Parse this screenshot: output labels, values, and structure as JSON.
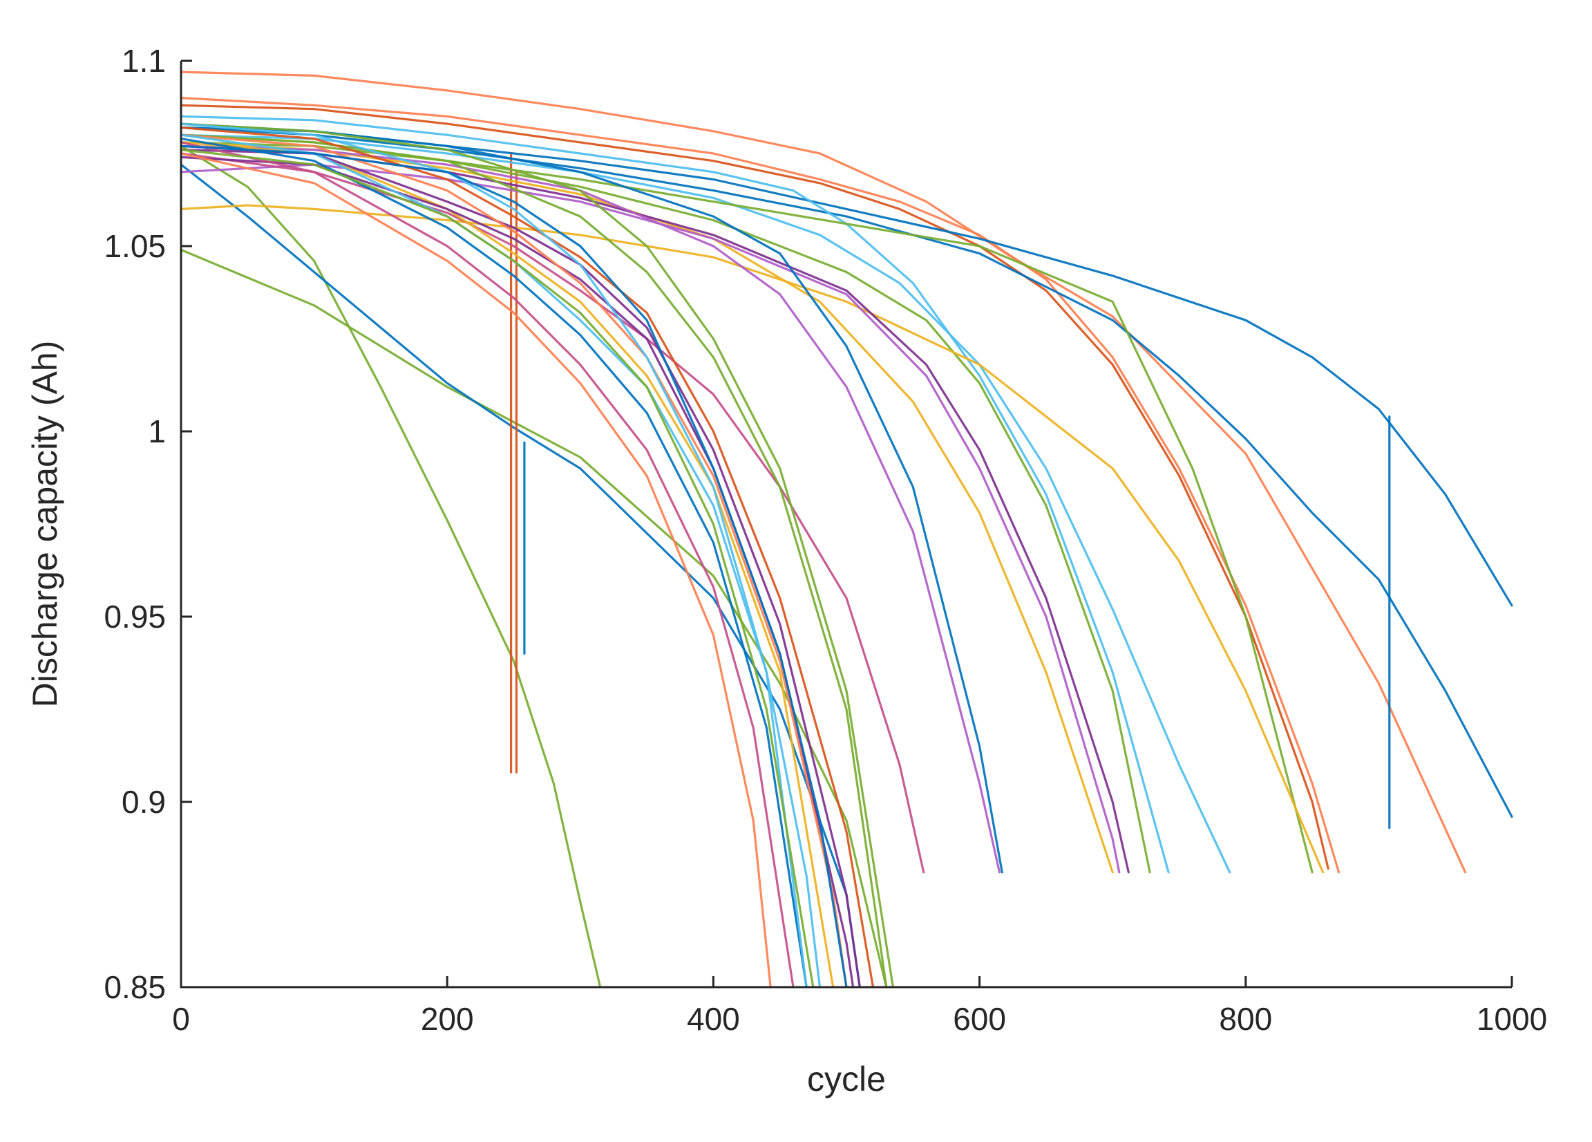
{
  "chart_data": {
    "type": "line",
    "title": "",
    "xlabel": "cycle",
    "ylabel": "Discharge capacity (Ah)",
    "xlim": [
      0,
      1000
    ],
    "ylim": [
      0.85,
      1.1
    ],
    "xticks": [
      0,
      200,
      400,
      600,
      800,
      1000
    ],
    "yticks": [
      0.85,
      0.9,
      0.95,
      1,
      1.05,
      1.1
    ],
    "xtick_labels": [
      "0",
      "200",
      "400",
      "600",
      "800",
      "1000"
    ],
    "ytick_labels": [
      "0.85",
      "0.9",
      "0.95",
      "1",
      "1.05",
      "1.1"
    ],
    "grid": false,
    "legend": "none",
    "series": [
      {
        "color": "#77ac30",
        "x": [
          0,
          50,
          100,
          150,
          200,
          250,
          280,
          300,
          315
        ],
        "y": [
          1.077,
          1.066,
          1.046,
          1.012,
          0.976,
          0.938,
          0.905,
          0.873,
          0.85
        ]
      },
      {
        "color": "#77ac30",
        "x": [
          0,
          100,
          200,
          300,
          400,
          450,
          500,
          530
        ],
        "y": [
          1.049,
          1.034,
          1.012,
          0.993,
          0.961,
          0.932,
          0.895,
          0.85
        ]
      },
      {
        "color": "#0072bd",
        "x": [
          0,
          50,
          100,
          150,
          200,
          250,
          300,
          400,
          450,
          500,
          510
        ],
        "y": [
          1.072,
          1.058,
          1.043,
          1.028,
          1.013,
          1.001,
          0.99,
          0.955,
          0.925,
          0.875,
          0.85
        ]
      },
      {
        "color": "#0072bd",
        "x": [
          258,
          258
        ],
        "y": [
          0.997,
          0.94
        ]
      },
      {
        "color": "#d95319",
        "x": [
          248,
          248
        ],
        "y": [
          1.075,
          0.908
        ]
      },
      {
        "color": "#d95319",
        "x": [
          252,
          252
        ],
        "y": [
          1.07,
          0.908
        ]
      },
      {
        "color": "#ff7f50",
        "x": [
          0,
          100,
          200,
          300,
          400,
          480,
          560,
          620,
          700,
          800,
          900,
          965
        ],
        "y": [
          1.097,
          1.096,
          1.092,
          1.087,
          1.081,
          1.075,
          1.062,
          1.048,
          1.031,
          0.994,
          0.932,
          0.881
        ]
      },
      {
        "color": "#ff7f50",
        "x": [
          0,
          100,
          200,
          300,
          400,
          480,
          540,
          600,
          650,
          700,
          750,
          800,
          850,
          870
        ],
        "y": [
          1.09,
          1.088,
          1.085,
          1.08,
          1.075,
          1.068,
          1.062,
          1.053,
          1.041,
          1.02,
          0.99,
          0.953,
          0.905,
          0.881
        ]
      },
      {
        "color": "#d95319",
        "x": [
          0,
          100,
          200,
          300,
          400,
          480,
          540,
          600,
          650,
          700,
          750,
          800,
          850,
          862
        ],
        "y": [
          1.088,
          1.087,
          1.083,
          1.078,
          1.073,
          1.067,
          1.06,
          1.05,
          1.038,
          1.018,
          0.988,
          0.95,
          0.9,
          0.882
        ]
      },
      {
        "color": "#0072bd",
        "x": [
          0,
          100,
          200,
          300,
          400,
          500,
          600,
          700,
          800,
          850,
          900,
          950,
          1000
        ],
        "y": [
          1.083,
          1.081,
          1.077,
          1.073,
          1.068,
          1.06,
          1.052,
          1.042,
          1.03,
          1.02,
          1.006,
          0.983,
          0.953
        ]
      },
      {
        "color": "#0072bd",
        "x": [
          0,
          100,
          200,
          300,
          400,
          500,
          600,
          700,
          750,
          800,
          850,
          900,
          950,
          1000
        ],
        "y": [
          1.082,
          1.08,
          1.076,
          1.071,
          1.065,
          1.058,
          1.048,
          1.03,
          1.015,
          0.998,
          0.978,
          0.96,
          0.93,
          0.896
        ]
      },
      {
        "color": "#0072bd",
        "x": [
          908,
          908
        ],
        "y": [
          1.004,
          0.893
        ]
      },
      {
        "color": "#4dbeee",
        "x": [
          0,
          100,
          200,
          300,
          400,
          480,
          540,
          600,
          650,
          700,
          750,
          788
        ],
        "y": [
          1.08,
          1.079,
          1.075,
          1.07,
          1.063,
          1.053,
          1.04,
          1.018,
          0.99,
          0.952,
          0.91,
          0.881
        ]
      },
      {
        "color": "#4dbeee",
        "x": [
          0,
          100,
          200,
          300,
          400,
          460,
          500,
          550,
          600,
          650,
          700,
          742
        ],
        "y": [
          1.085,
          1.084,
          1.08,
          1.075,
          1.07,
          1.065,
          1.056,
          1.04,
          1.015,
          0.983,
          0.935,
          0.881
        ]
      },
      {
        "color": "#77ac30",
        "x": [
          0,
          100,
          200,
          300,
          400,
          500,
          560,
          600,
          650,
          700,
          728
        ],
        "y": [
          1.08,
          1.078,
          1.073,
          1.066,
          1.057,
          1.043,
          1.03,
          1.013,
          0.98,
          0.93,
          0.881
        ]
      },
      {
        "color": "#77ac30",
        "x": [
          0,
          100,
          200,
          300,
          400,
          500,
          600,
          700,
          760,
          800,
          850
        ],
        "y": [
          1.078,
          1.077,
          1.073,
          1.068,
          1.062,
          1.056,
          1.05,
          1.035,
          0.99,
          0.95,
          0.881
        ]
      },
      {
        "color": "#edb120",
        "x": [
          0,
          50,
          100,
          200,
          300,
          400,
          500,
          600,
          700,
          750,
          800,
          858
        ],
        "y": [
          1.06,
          1.061,
          1.06,
          1.057,
          1.053,
          1.047,
          1.035,
          1.018,
          0.99,
          0.965,
          0.93,
          0.881
        ]
      },
      {
        "color": "#edb120",
        "x": [
          0,
          100,
          200,
          300,
          400,
          480,
          550,
          600,
          650,
          700
        ],
        "y": [
          1.078,
          1.076,
          1.071,
          1.064,
          1.052,
          1.035,
          1.008,
          0.978,
          0.935,
          0.881
        ]
      },
      {
        "color": "#7e2f8e",
        "x": [
          0,
          100,
          200,
          300,
          400,
          500,
          560,
          600,
          650,
          700,
          712
        ],
        "y": [
          1.077,
          1.075,
          1.07,
          1.063,
          1.053,
          1.038,
          1.018,
          0.995,
          0.955,
          0.9,
          0.881
        ]
      },
      {
        "color": "#b05cc8",
        "x": [
          0,
          100,
          200,
          300,
          400,
          500,
          560,
          600,
          650,
          700,
          705
        ],
        "y": [
          1.07,
          1.072,
          1.068,
          1.062,
          1.052,
          1.037,
          1.015,
          0.99,
          0.95,
          0.89,
          0.881
        ]
      },
      {
        "color": "#0072bd",
        "x": [
          0,
          100,
          200,
          300,
          400,
          450,
          500,
          550,
          600,
          617
        ],
        "y": [
          1.082,
          1.081,
          1.077,
          1.07,
          1.058,
          1.048,
          1.023,
          0.985,
          0.915,
          0.881
        ]
      },
      {
        "color": "#b05cc8",
        "x": [
          0,
          100,
          200,
          300,
          400,
          450,
          500,
          550,
          600,
          615
        ],
        "y": [
          1.077,
          1.076,
          1.072,
          1.065,
          1.05,
          1.037,
          1.012,
          0.973,
          0.905,
          0.881
        ]
      },
      {
        "color": "#c44e8a",
        "x": [
          0,
          100,
          200,
          250,
          300,
          350,
          400,
          450,
          500,
          540,
          558
        ],
        "y": [
          1.075,
          1.07,
          1.059,
          1.05,
          1.038,
          1.025,
          1.01,
          0.985,
          0.955,
          0.91,
          0.881
        ]
      },
      {
        "color": "#77ac30",
        "x": [
          0,
          100,
          200,
          300,
          350,
          400,
          450,
          500,
          535
        ],
        "y": [
          1.083,
          1.081,
          1.076,
          1.065,
          1.05,
          1.025,
          0.99,
          0.93,
          0.85
        ]
      },
      {
        "color": "#77ac30",
        "x": [
          0,
          100,
          200,
          300,
          350,
          400,
          450,
          500,
          530
        ],
        "y": [
          1.08,
          1.078,
          1.073,
          1.058,
          1.043,
          1.02,
          0.985,
          0.925,
          0.85
        ]
      },
      {
        "color": "#edb120",
        "x": [
          0,
          100,
          200,
          250,
          300,
          350,
          400,
          450,
          490
        ],
        "y": [
          1.078,
          1.075,
          1.06,
          1.048,
          1.035,
          1.015,
          0.985,
          0.935,
          0.85
        ]
      },
      {
        "color": "#d95319",
        "x": [
          0,
          100,
          200,
          250,
          300,
          350,
          400,
          450,
          500,
          520
        ],
        "y": [
          1.082,
          1.079,
          1.068,
          1.058,
          1.047,
          1.032,
          1.0,
          0.955,
          0.892,
          0.85
        ]
      },
      {
        "color": "#7e2f8e",
        "x": [
          0,
          100,
          200,
          250,
          300,
          350,
          400,
          450,
          500,
          510
        ],
        "y": [
          1.076,
          1.075,
          1.062,
          1.055,
          1.045,
          1.028,
          0.995,
          0.948,
          0.875,
          0.85
        ]
      },
      {
        "color": "#7e2f8e",
        "x": [
          0,
          100,
          200,
          250,
          300,
          350,
          400,
          450,
          500,
          505
        ],
        "y": [
          1.074,
          1.072,
          1.06,
          1.052,
          1.041,
          1.025,
          0.99,
          0.94,
          0.862,
          0.85
        ]
      },
      {
        "color": "#ff7f50",
        "x": [
          0,
          100,
          200,
          250,
          300,
          350,
          400,
          450,
          490,
          500
        ],
        "y": [
          1.08,
          1.077,
          1.065,
          1.054,
          1.04,
          1.02,
          0.988,
          0.938,
          0.875,
          0.85
        ]
      },
      {
        "color": "#4dbeee",
        "x": [
          0,
          100,
          200,
          250,
          300,
          350,
          400,
          440,
          470,
          480
        ],
        "y": [
          1.08,
          1.075,
          1.058,
          1.046,
          1.03,
          1.012,
          0.98,
          0.935,
          0.88,
          0.85
        ]
      },
      {
        "color": "#0072bd",
        "x": [
          0,
          100,
          200,
          250,
          300,
          350,
          400,
          440,
          470
        ],
        "y": [
          1.079,
          1.073,
          1.055,
          1.042,
          1.026,
          1.005,
          0.97,
          0.92,
          0.85
        ]
      },
      {
        "color": "#c44e8a",
        "x": [
          0,
          100,
          200,
          250,
          300,
          350,
          400,
          430,
          460
        ],
        "y": [
          1.078,
          1.07,
          1.05,
          1.036,
          1.018,
          0.995,
          0.958,
          0.92,
          0.85
        ]
      },
      {
        "color": "#ff7f50",
        "x": [
          0,
          100,
          200,
          250,
          300,
          350,
          400,
          430,
          443
        ],
        "y": [
          1.075,
          1.067,
          1.046,
          1.032,
          1.013,
          0.988,
          0.945,
          0.895,
          0.85
        ]
      },
      {
        "color": "#4dbeee",
        "x": [
          0,
          100,
          200,
          250,
          300,
          350,
          400,
          440,
          470
        ],
        "y": [
          1.083,
          1.08,
          1.07,
          1.06,
          1.045,
          1.02,
          0.985,
          0.935,
          0.85
        ]
      },
      {
        "color": "#77ac30",
        "x": [
          0,
          100,
          200,
          250,
          300,
          350,
          400,
          440,
          475
        ],
        "y": [
          1.076,
          1.072,
          1.058,
          1.046,
          1.032,
          1.012,
          0.975,
          0.925,
          0.85
        ]
      },
      {
        "color": "#0072bd",
        "x": [
          0,
          100,
          200,
          250,
          300,
          350,
          400,
          450,
          480,
          500
        ],
        "y": [
          1.077,
          1.075,
          1.07,
          1.062,
          1.05,
          1.03,
          0.99,
          0.94,
          0.895,
          0.85
        ]
      }
    ]
  }
}
